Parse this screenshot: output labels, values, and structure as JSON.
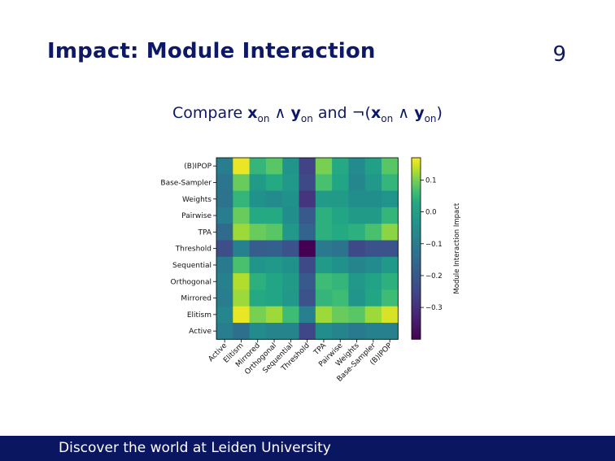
{
  "slide": {
    "title": "Impact: Module Interaction",
    "number": "9",
    "subtitle_prefix": "Compare ",
    "x_var": "x",
    "y_var": "y",
    "sub": "on",
    "and_word": " and ",
    "and_symbol": " ∧ ",
    "neg_open": "¬(",
    "close": ")"
  },
  "footer": {
    "text": "Discover the world at Leiden University"
  },
  "colors": {
    "footer_bg": "#0a1660",
    "title": "#0d1866"
  },
  "chart_data": {
    "type": "heatmap",
    "colormap": "viridis",
    "rows": [
      "(B)IPOP",
      "Base-Sampler",
      "Weights",
      "Pairwise",
      "TPA",
      "Threshold",
      "Sequential",
      "Orthogonal",
      "Mirrored",
      "Elitism",
      "Active"
    ],
    "columns": [
      "Active",
      "Elitism",
      "Mirrored",
      "Orthogonal",
      "Sequential",
      "Threshold",
      "TPA",
      "Pairwise",
      "Weights",
      "Base-Sampler",
      "(B)IPOP"
    ],
    "values": [
      [
        -0.1,
        0.16,
        0.05,
        0.08,
        -0.03,
        -0.26,
        0.1,
        0.03,
        -0.06,
        0.0,
        0.08
      ],
      [
        -0.12,
        0.09,
        -0.01,
        0.03,
        -0.02,
        -0.24,
        0.07,
        0.02,
        -0.07,
        -0.02,
        0.05
      ],
      [
        -0.13,
        0.05,
        -0.04,
        -0.06,
        -0.04,
        -0.29,
        -0.01,
        -0.01,
        -0.05,
        -0.05,
        -0.03
      ],
      [
        -0.1,
        0.09,
        0.03,
        0.03,
        -0.05,
        -0.2,
        0.04,
        0.02,
        -0.01,
        -0.01,
        0.05
      ],
      [
        -0.15,
        0.12,
        0.09,
        0.08,
        -0.02,
        -0.17,
        0.04,
        0.03,
        0.04,
        0.07,
        0.11
      ],
      [
        -0.23,
        -0.09,
        -0.19,
        -0.18,
        -0.22,
        -0.4,
        -0.11,
        -0.13,
        -0.24,
        -0.22,
        -0.22
      ],
      [
        -0.11,
        0.07,
        -0.03,
        -0.02,
        -0.04,
        -0.24,
        -0.01,
        -0.04,
        -0.08,
        -0.06,
        -0.02
      ],
      [
        -0.09,
        0.13,
        0.04,
        0.02,
        -0.01,
        -0.2,
        0.06,
        0.05,
        -0.02,
        0.01,
        0.04
      ],
      [
        -0.1,
        0.12,
        0.03,
        0.02,
        -0.02,
        -0.22,
        0.05,
        0.06,
        -0.03,
        0.02,
        0.06
      ],
      [
        -0.07,
        0.16,
        0.1,
        0.12,
        0.06,
        -0.09,
        0.12,
        0.09,
        0.08,
        0.12,
        0.15
      ],
      [
        -0.1,
        -0.14,
        -0.06,
        -0.08,
        -0.08,
        -0.25,
        -0.05,
        -0.08,
        -0.11,
        -0.09,
        -0.09
      ]
    ],
    "vmin": -0.4,
    "vmax": 0.17,
    "colorbar": {
      "label": "Module Interaction Impact",
      "ticks": [
        0.1,
        0.0,
        -0.1,
        -0.2,
        -0.3
      ],
      "tick_labels": [
        "0.1",
        "0.0",
        "−0.1",
        "−0.2",
        "−0.3"
      ]
    },
    "grid": false
  }
}
